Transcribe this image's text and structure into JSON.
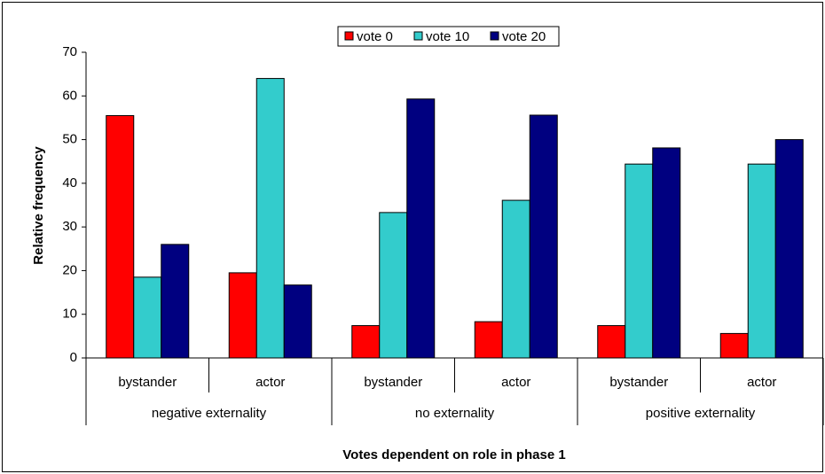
{
  "chart_data": {
    "type": "bar",
    "x_label": "Votes dependent on role in phase 1",
    "y_label": "Relative frequency",
    "categories": [
      "bystander",
      "actor",
      "bystander",
      "actor",
      "bystander",
      "actor"
    ],
    "groups": [
      "negative externality",
      "no externality",
      "positive externality"
    ],
    "series": [
      {
        "name": "vote 0",
        "color": "#ff0000",
        "values": [
          55.5,
          19.5,
          7.4,
          8.3,
          7.4,
          5.6
        ]
      },
      {
        "name": "vote 10",
        "color": "#33cccc",
        "values": [
          18.5,
          64,
          33.3,
          36.1,
          44.4,
          44.4
        ]
      },
      {
        "name": "vote 20",
        "color": "#000080",
        "values": [
          26,
          16.7,
          59.3,
          55.6,
          48.1,
          50
        ]
      }
    ],
    "ylim": [
      0,
      70
    ],
    "yticks": [
      0,
      10,
      20,
      30,
      40,
      50,
      60,
      70
    ],
    "legend": "top"
  }
}
